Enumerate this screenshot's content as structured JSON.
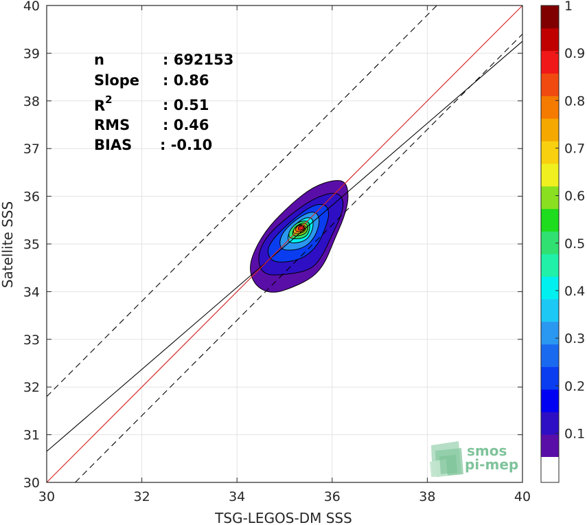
{
  "chart_data": {
    "type": "heatmap",
    "subtype": "density-contour scatter",
    "xlabel": "TSG-LEGOS-DM SSS",
    "ylabel": "Satellite SSS",
    "xlim": [
      30,
      40
    ],
    "ylim": [
      30,
      40
    ],
    "x_ticks": [
      "30",
      "32",
      "34",
      "36",
      "38",
      "40"
    ],
    "y_ticks": [
      "30",
      "31",
      "32",
      "33",
      "34",
      "35",
      "36",
      "37",
      "38",
      "39",
      "40"
    ],
    "grid": true,
    "stats": {
      "n_label": "n",
      "n_value": ": 692153",
      "slope_label": "Slope",
      "slope_value": ": 0.86",
      "r2_label": "R",
      "r2_sup": "2",
      "r2_value": ": 0.51",
      "rms_label": "RMS",
      "rms_value": ": 0.46",
      "bias_label": "BIAS",
      "bias_value": ": -0.10"
    },
    "lines": {
      "identity": {
        "x": [
          30,
          40
        ],
        "y": [
          30,
          40
        ],
        "color": "#d62728"
      },
      "regression": {
        "slope": 0.86,
        "intercept": 4.85,
        "color": "#000000"
      },
      "upper_bound": {
        "slope": 1.0,
        "intercept": 1.8,
        "dash": true
      },
      "lower_bound": {
        "slope": 1.0,
        "intercept": -0.6,
        "dash": true
      }
    },
    "density": {
      "center": [
        35.35,
        35.35
      ],
      "levels": [
        0.05,
        0.1,
        0.15,
        0.2,
        0.25,
        0.3,
        0.35,
        0.4,
        0.45,
        0.5,
        0.55,
        0.6,
        0.65,
        0.7,
        0.75,
        0.8,
        0.85,
        0.9,
        0.95
      ],
      "contours": [
        {
          "level": 0.05,
          "points": [
            [
              34.75,
              33.95
            ],
            [
              35.2,
              34.1
            ],
            [
              35.6,
              34.3
            ],
            [
              35.85,
              34.6
            ],
            [
              36.05,
              35.1
            ],
            [
              36.25,
              35.55
            ],
            [
              36.35,
              35.95
            ],
            [
              36.3,
              36.3
            ],
            [
              36.05,
              36.35
            ],
            [
              35.6,
              36.2
            ],
            [
              35.15,
              35.85
            ],
            [
              34.65,
              35.35
            ],
            [
              34.35,
              34.85
            ],
            [
              34.25,
              34.45
            ],
            [
              34.4,
              34.1
            ]
          ]
        },
        {
          "level": 0.1,
          "points": [
            [
              34.55,
              34.35
            ],
            [
              35.0,
              34.35
            ],
            [
              35.55,
              34.45
            ],
            [
              35.8,
              34.75
            ],
            [
              36.0,
              35.2
            ],
            [
              36.2,
              35.6
            ],
            [
              36.25,
              35.95
            ],
            [
              36.05,
              36.1
            ],
            [
              35.6,
              35.95
            ],
            [
              35.1,
              35.6
            ],
            [
              34.6,
              35.15
            ],
            [
              34.42,
              34.7
            ]
          ]
        },
        {
          "level": 0.2,
          "points": [
            [
              34.75,
              34.6
            ],
            [
              35.3,
              34.65
            ],
            [
              35.65,
              34.9
            ],
            [
              35.85,
              35.3
            ],
            [
              35.95,
              35.65
            ],
            [
              35.85,
              35.85
            ],
            [
              35.55,
              35.8
            ],
            [
              35.1,
              35.45
            ],
            [
              34.75,
              35.1
            ],
            [
              34.62,
              34.85
            ]
          ]
        },
        {
          "level": 0.3,
          "points": [
            [
              34.95,
              34.85
            ],
            [
              35.4,
              34.9
            ],
            [
              35.65,
              35.15
            ],
            [
              35.75,
              35.5
            ],
            [
              35.65,
              35.7
            ],
            [
              35.35,
              35.6
            ],
            [
              35.0,
              35.3
            ],
            [
              34.88,
              35.05
            ]
          ]
        },
        {
          "level": 0.4,
          "points": [
            [
              35.05,
              35.0
            ],
            [
              35.45,
              35.05
            ],
            [
              35.6,
              35.3
            ],
            [
              35.6,
              35.55
            ],
            [
              35.4,
              35.55
            ],
            [
              35.1,
              35.3
            ]
          ]
        },
        {
          "level": 0.5,
          "points": [
            [
              35.1,
              35.1
            ],
            [
              35.45,
              35.12
            ],
            [
              35.55,
              35.35
            ],
            [
              35.48,
              35.5
            ],
            [
              35.25,
              35.45
            ],
            [
              35.08,
              35.25
            ]
          ]
        },
        {
          "level": 0.6,
          "points": [
            [
              35.15,
              35.15
            ],
            [
              35.45,
              35.2
            ],
            [
              35.5,
              35.38
            ],
            [
              35.4,
              35.46
            ],
            [
              35.2,
              35.35
            ]
          ]
        },
        {
          "level": 0.7,
          "points": [
            [
              35.2,
              35.2
            ],
            [
              35.42,
              35.24
            ],
            [
              35.46,
              35.38
            ],
            [
              35.3,
              35.42
            ],
            [
              35.18,
              35.3
            ]
          ]
        },
        {
          "level": 0.8,
          "points": [
            [
              35.25,
              35.24
            ],
            [
              35.42,
              35.27
            ],
            [
              35.42,
              35.38
            ],
            [
              35.3,
              35.4
            ],
            [
              35.22,
              35.32
            ]
          ]
        },
        {
          "level": 0.9,
          "points": [
            [
              35.28,
              35.28
            ],
            [
              35.4,
              35.3
            ],
            [
              35.4,
              35.37
            ],
            [
              35.3,
              35.38
            ]
          ]
        }
      ]
    },
    "colorbar": {
      "min": 0.05,
      "max": 1,
      "tick_labels": [
        "0.1",
        "0.2",
        "0.3",
        "0.4",
        "0.5",
        "0.6",
        "0.7",
        "0.8",
        "0.9",
        "1"
      ],
      "tick_values": [
        0.1,
        0.2,
        0.3,
        0.4,
        0.5,
        0.6,
        0.7,
        0.8,
        0.9,
        1.0
      ],
      "colors": [
        "#5a0ea8",
        "#2e0fc4",
        "#0000f2",
        "#0a3df0",
        "#1a6af0",
        "#2a97f0",
        "#1ec8f5",
        "#00f0f0",
        "#20f0a8",
        "#30e070",
        "#1edc1e",
        "#8ae020",
        "#f0f020",
        "#f8d010",
        "#f5a800",
        "#f57a00",
        "#f04a10",
        "#f01818",
        "#c00000",
        "#800000"
      ]
    }
  },
  "logo": {
    "line1": "smos",
    "line2": "pi-mep"
  }
}
